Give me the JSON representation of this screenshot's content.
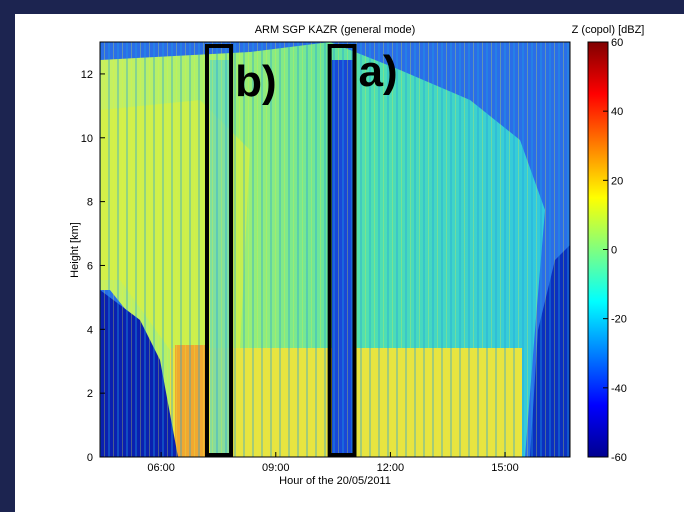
{
  "chart_data": {
    "type": "heatmap",
    "title": "ARM SGP KAZR (general mode)",
    "xlabel": "Hour of the 20/05/2011",
    "ylabel": "Height [km]",
    "xlim": [
      4.4,
      16.7
    ],
    "xticks": [
      {
        "value": 6,
        "label": "06:00"
      },
      {
        "value": 9,
        "label": "09:00"
      },
      {
        "value": 12,
        "label": "12:00"
      },
      {
        "value": 15,
        "label": "15:00"
      }
    ],
    "ylim": [
      0,
      13
    ],
    "yticks": [
      0,
      2,
      4,
      6,
      8,
      10,
      12
    ],
    "colorbar": {
      "label": "Z (copol) [dBZ]",
      "lim": [
        -60,
        60
      ],
      "ticks": [
        -60,
        -40,
        -20,
        0,
        20,
        40,
        60
      ],
      "colormap": "jet"
    },
    "highlights": [
      {
        "label": "b)",
        "x": [
          7.2,
          7.83
        ]
      },
      {
        "label": "a)",
        "x": [
          10.41,
          11.06
        ]
      }
    ]
  }
}
